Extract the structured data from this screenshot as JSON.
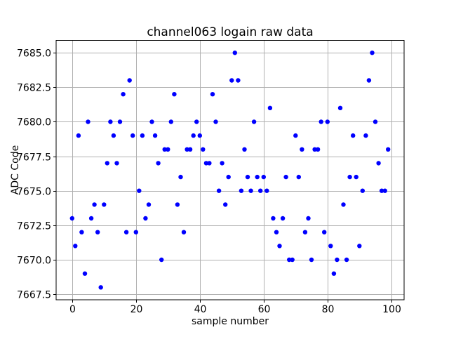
{
  "chart_data": {
    "type": "scatter",
    "title": "channel063 logain raw data",
    "xlabel": "sample number",
    "ylabel": "ADC Code",
    "marker_color": "#0000ff",
    "marker_radius_px": 3.2,
    "grid": true,
    "grid_color": "#b0b0b0",
    "spine_color": "#000000",
    "background_color": "#ffffff",
    "legend": "none",
    "xlim": [
      -5,
      104
    ],
    "ylim": [
      7667.1,
      7685.9
    ],
    "xticks": [
      0,
      20,
      40,
      60,
      80,
      100
    ],
    "yticks": [
      7667.5,
      7670.0,
      7672.5,
      7675.0,
      7677.5,
      7680.0,
      7682.5,
      7685.0
    ],
    "ytick_decimals": 1,
    "x": [
      0,
      1,
      2,
      3,
      4,
      5,
      6,
      7,
      8,
      9,
      10,
      11,
      12,
      13,
      14,
      15,
      16,
      17,
      18,
      19,
      20,
      21,
      22,
      23,
      24,
      25,
      26,
      27,
      28,
      29,
      30,
      31,
      32,
      33,
      34,
      35,
      36,
      37,
      38,
      39,
      40,
      41,
      42,
      43,
      44,
      45,
      46,
      47,
      48,
      49,
      50,
      51,
      52,
      53,
      54,
      55,
      56,
      57,
      58,
      59,
      60,
      61,
      62,
      63,
      64,
      65,
      66,
      67,
      68,
      69,
      70,
      71,
      72,
      73,
      74,
      75,
      76,
      77,
      78,
      79,
      80,
      81,
      82,
      83,
      84,
      85,
      86,
      87,
      88,
      89,
      90,
      91,
      92,
      93,
      94,
      95,
      96,
      97,
      98,
      99
    ],
    "y": [
      7673,
      7671,
      7679,
      7672,
      7669,
      7680,
      7673,
      7674,
      7672,
      7668,
      7674,
      7677,
      7680,
      7679,
      7677,
      7680,
      7682,
      7672,
      7683,
      7679,
      7672,
      7675,
      7679,
      7673,
      7674,
      7680,
      7679,
      7677,
      7670,
      7678,
      7678,
      7680,
      7682,
      7674,
      7676,
      7672,
      7678,
      7678,
      7679,
      7680,
      7679,
      7678,
      7677,
      7677,
      7682,
      7680,
      7675,
      7677,
      7674,
      7676,
      7683,
      7685,
      7683,
      7675,
      7678,
      7676,
      7675,
      7680,
      7676,
      7675,
      7676,
      7675,
      7681,
      7673,
      7672,
      7671,
      7673,
      7676,
      7670,
      7670,
      7679,
      7676,
      7678,
      7672,
      7673,
      7670,
      7678,
      7678,
      7680,
      7672,
      7680,
      7671,
      7669,
      7670,
      7681,
      7674,
      7670,
      7676,
      7679,
      7676,
      7671,
      7675,
      7679,
      7683,
      7685,
      7680,
      7677,
      7675,
      7675,
      7678
    ]
  }
}
